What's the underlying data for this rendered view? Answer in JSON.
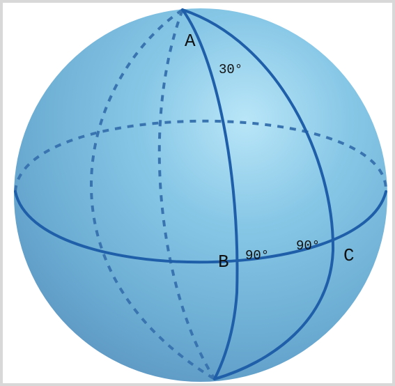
{
  "points": {
    "a": "A",
    "b": "B",
    "c": "C"
  },
  "angles": {
    "at_a": "30°",
    "at_b": "90°",
    "at_c": "90°"
  },
  "colors": {
    "sphere_light": "#a9dcf3",
    "sphere_mid": "#7bbfe0",
    "sphere_dark": "#5f9cc4",
    "great_circle": "#1f5ea8",
    "hidden_arc": "#3a74b0",
    "frame_border": "#d8d8d8"
  }
}
